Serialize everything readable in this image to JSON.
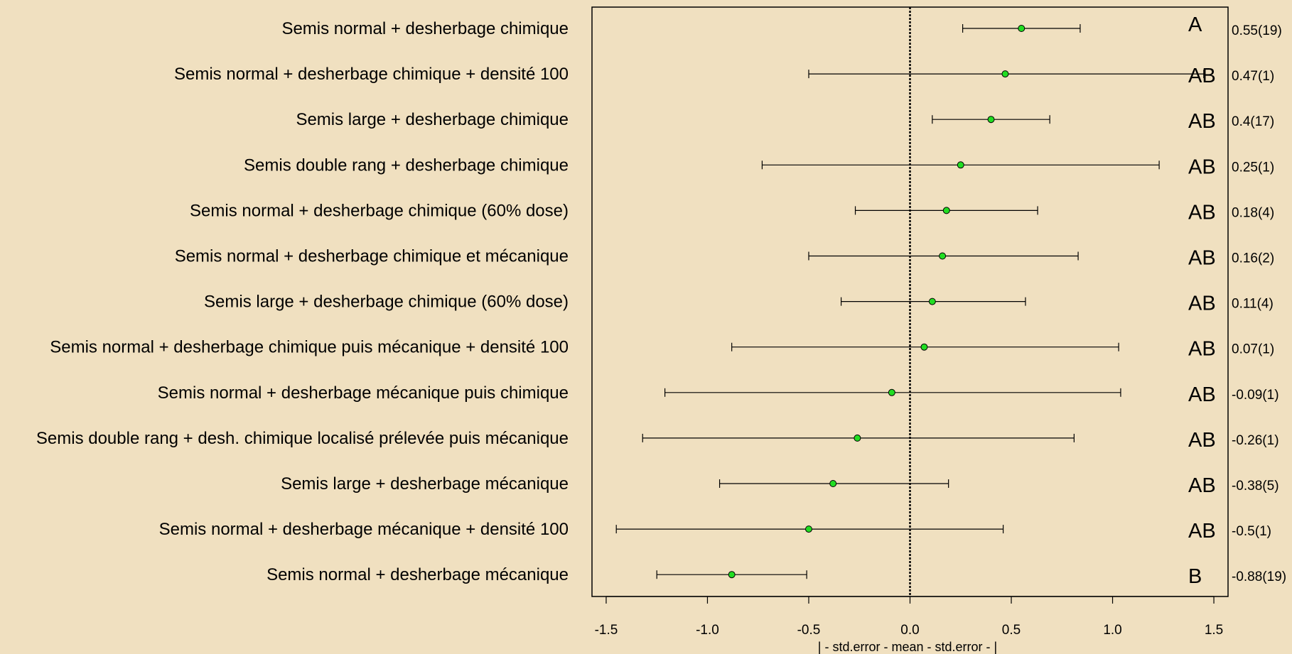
{
  "chart_data": {
    "type": "scatter",
    "xlabel": "| - std.error - mean - std.error - |",
    "xlim": [
      -1.57,
      1.57
    ],
    "x_ticks": [
      -1.5,
      -1.0,
      -0.5,
      0.0,
      0.5,
      1.0,
      1.5
    ],
    "x_tick_labels": [
      "-1.5",
      "-1.0",
      "-0.5",
      "0.0",
      "0.5",
      "1.0",
      "1.5"
    ],
    "reference_line_x": 0,
    "grid": false,
    "point_color": "#22dd22",
    "items": [
      {
        "label": "Semis normal + desherbage chimique",
        "mean": 0.55,
        "lower": 0.26,
        "upper": 0.84,
        "group": "A",
        "value_label": "0.55(19)"
      },
      {
        "label": "Semis normal + desherbage chimique + densité 100",
        "mean": 0.47,
        "lower": -0.5,
        "upper": 1.45,
        "group": "AB",
        "value_label": "0.47(1)"
      },
      {
        "label": "Semis large + desherbage chimique",
        "mean": 0.4,
        "lower": 0.11,
        "upper": 0.69,
        "group": "AB",
        "value_label": "0.4(17)"
      },
      {
        "label": "Semis double rang + desherbage chimique",
        "mean": 0.25,
        "lower": -0.73,
        "upper": 1.23,
        "group": "AB",
        "value_label": "0.25(1)"
      },
      {
        "label": "Semis normal + desherbage chimique (60% dose)",
        "mean": 0.18,
        "lower": -0.27,
        "upper": 0.63,
        "group": "AB",
        "value_label": "0.18(4)"
      },
      {
        "label": "Semis normal + desherbage chimique et mécanique",
        "mean": 0.16,
        "lower": -0.5,
        "upper": 0.83,
        "group": "AB",
        "value_label": "0.16(2)"
      },
      {
        "label": "Semis large + desherbage chimique (60% dose)",
        "mean": 0.11,
        "lower": -0.34,
        "upper": 0.57,
        "group": "AB",
        "value_label": "0.11(4)"
      },
      {
        "label": "Semis normal + desherbage chimique puis mécanique + densité 100",
        "mean": 0.07,
        "lower": -0.88,
        "upper": 1.03,
        "group": "AB",
        "value_label": "0.07(1)"
      },
      {
        "label": "Semis normal + desherbage mécanique puis chimique",
        "mean": -0.09,
        "lower": -1.21,
        "upper": 1.04,
        "group": "AB",
        "value_label": "-0.09(1)"
      },
      {
        "label": "Semis double rang + desh. chimique localisé prélevée puis mécanique",
        "mean": -0.26,
        "lower": -1.32,
        "upper": 0.81,
        "group": "AB",
        "value_label": "-0.26(1)"
      },
      {
        "label": "Semis large + desherbage mécanique",
        "mean": -0.38,
        "lower": -0.94,
        "upper": 0.19,
        "group": "AB",
        "value_label": "-0.38(5)"
      },
      {
        "label": "Semis normal + desherbage mécanique + densité 100",
        "mean": -0.5,
        "lower": -1.45,
        "upper": 0.46,
        "group": "AB",
        "value_label": "-0.5(1)"
      },
      {
        "label": "Semis normal + desherbage mécanique",
        "mean": -0.88,
        "lower": -1.25,
        "upper": -0.51,
        "group": "B",
        "value_label": "-0.88(19)"
      }
    ]
  }
}
